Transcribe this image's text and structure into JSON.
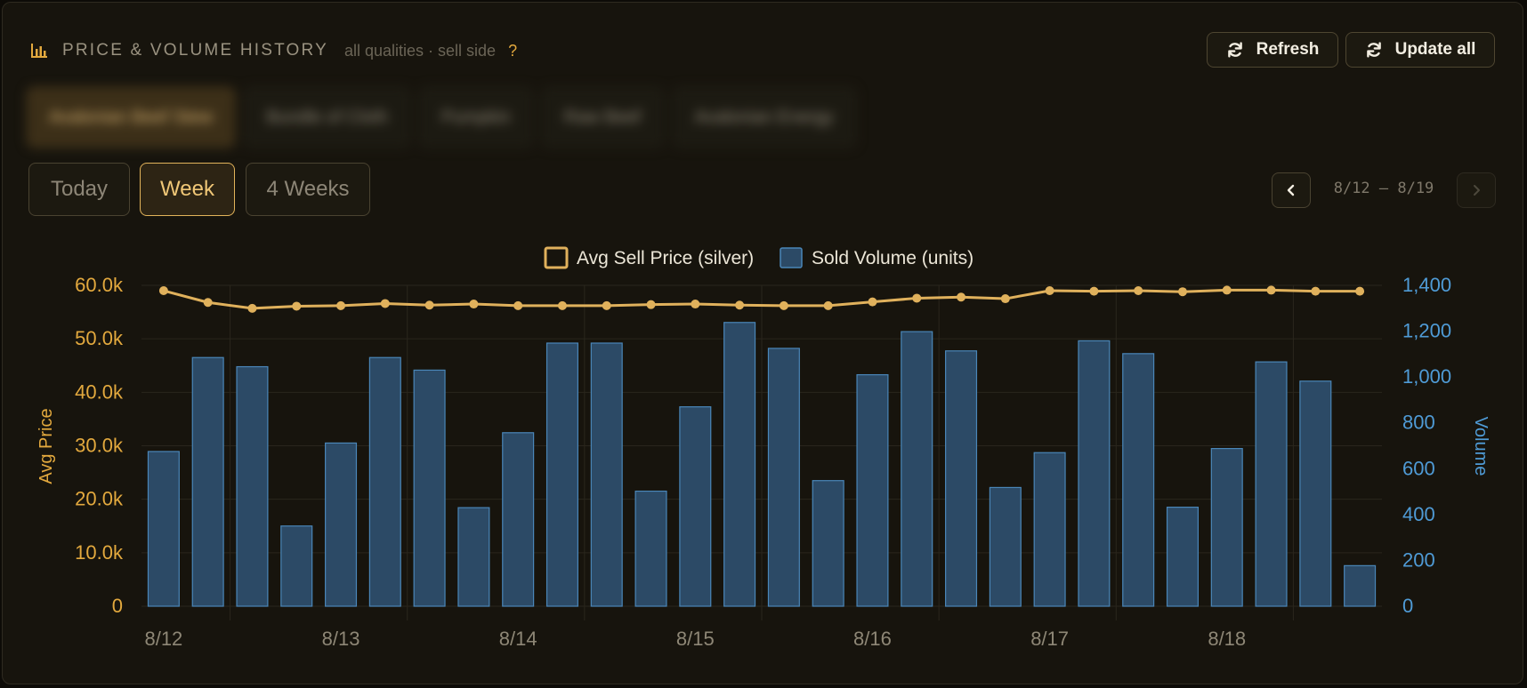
{
  "header": {
    "title": "PRICE & VOLUME HISTORY",
    "subtitle": "all qualities · sell side",
    "help": "?",
    "icon": "bar-chart-icon"
  },
  "actions": {
    "refresh_label": "Refresh",
    "update_all_label": "Update all"
  },
  "ranges": {
    "today": "Today",
    "week": "Week",
    "four_weeks": "4 Weeks",
    "selected": "Week"
  },
  "date_nav": {
    "range_label": "8/12 – 8/19",
    "prev_icon": "chevron-left-icon",
    "next_icon": "chevron-right-icon"
  },
  "colors": {
    "accent": "#e3a93e",
    "price_line": "#e0b15c",
    "volume_bar": "#2c4a66",
    "volume_border": "#4a86b8",
    "volume_axis": "#4f9bd6"
  },
  "chart_data": {
    "type": "bar",
    "title": "",
    "legend": [
      "Avg Sell Price (silver)",
      "Sold Volume (units)"
    ],
    "legend_placement": "top-center",
    "x_ticks": [
      "8/12",
      "8/13",
      "8/14",
      "8/15",
      "8/16",
      "8/17",
      "8/18"
    ],
    "x_day_range": [
      "8/12",
      "8/19"
    ],
    "points_per_day": 4,
    "y_left": {
      "label": "Avg Price",
      "min": 0,
      "max": 60000,
      "ticks": [
        "0",
        "10.0k",
        "20.0k",
        "30.0k",
        "40.0k",
        "50.0k",
        "60.0k"
      ]
    },
    "y_right": {
      "label": "Volume",
      "min": 0,
      "max": 1400,
      "ticks": [
        "0",
        "200",
        "400",
        "600",
        "800",
        "1,000",
        "1,200",
        "1,400"
      ]
    },
    "grid": true,
    "series": [
      {
        "name": "Avg Sell Price (silver)",
        "type": "line",
        "axis": "left",
        "values": [
          59000,
          56800,
          55700,
          56100,
          56200,
          56600,
          56300,
          56500,
          56200,
          56200,
          56200,
          56400,
          56500,
          56300,
          56200,
          56200,
          56900,
          57600,
          57800,
          57500,
          59000,
          58900,
          59000,
          58800,
          59100,
          59100,
          58900,
          58900
        ]
      },
      {
        "name": "Sold Volume (units)",
        "type": "bar",
        "axis": "right",
        "values": [
          675,
          1085,
          1045,
          350,
          712,
          1085,
          1030,
          430,
          757,
          1148,
          1148,
          502,
          870,
          1238,
          1125,
          548,
          1010,
          1198,
          1114,
          518,
          670,
          1158,
          1102,
          432,
          688,
          1066,
          982,
          177
        ]
      }
    ]
  },
  "tabs_blurred": [
    "Avalonian Beef Stew",
    "Bundle of Cloth",
    "Pumpkin",
    "Raw Beef",
    "Avalonian Energy"
  ]
}
